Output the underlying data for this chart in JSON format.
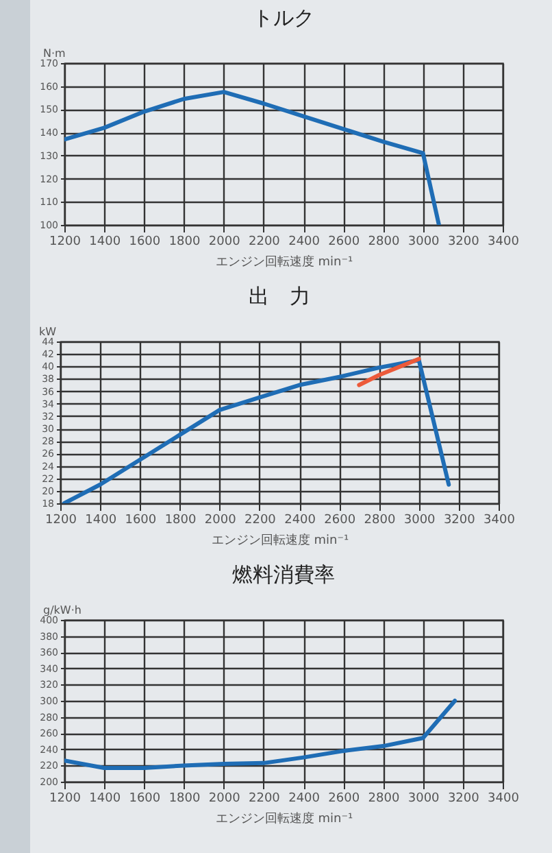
{
  "chart_data": [
    {
      "type": "line",
      "title": "トルク",
      "xlabel": "エンジン回転速度 min⁻¹",
      "ylabel": "N·m",
      "xlim": [
        1200,
        3400
      ],
      "xticks": [
        1200,
        1400,
        1600,
        1800,
        2000,
        2200,
        2400,
        2600,
        2800,
        3000,
        3200,
        3400
      ],
      "ylim": [
        100,
        170
      ],
      "yticks": [
        100,
        110,
        120,
        130,
        140,
        150,
        160,
        170
      ],
      "grid": true,
      "series": [
        {
          "color": "#1f6db5",
          "x": [
            1200,
            1400,
            1600,
            1800,
            2000,
            2200,
            2400,
            2600,
            2800,
            3000,
            3080
          ],
          "values": [
            137,
            142,
            149,
            154.5,
            157.5,
            152.5,
            147,
            141.5,
            136,
            131,
            100
          ]
        }
      ]
    },
    {
      "type": "line",
      "title": "出　力",
      "xlabel": "エンジン回転速度 min⁻¹",
      "ylabel": "kW",
      "xlim": [
        1200,
        3400
      ],
      "xticks": [
        1200,
        1400,
        1600,
        1800,
        2000,
        2200,
        2400,
        2600,
        2800,
        3000,
        3200,
        3400
      ],
      "ylim": [
        18,
        44
      ],
      "yticks": [
        18,
        20,
        22,
        24,
        26,
        28,
        30,
        32,
        34,
        36,
        38,
        40,
        42,
        44
      ],
      "grid": true,
      "series": [
        {
          "color": "#1f6db5",
          "x": [
            1220,
            1400,
            1600,
            1800,
            2000,
            2200,
            2400,
            2600,
            2800,
            3000,
            3150
          ],
          "values": [
            18,
            21,
            25,
            29,
            33,
            35,
            37,
            38.3,
            39.8,
            41,
            21
          ]
        },
        {
          "color": "#ec5a3a",
          "x": [
            2700,
            2800,
            3000
          ],
          "values": [
            37,
            38.6,
            41.2
          ]
        }
      ]
    },
    {
      "type": "line",
      "title": "燃料消費率",
      "xlabel": "エンジン回転速度 min⁻¹",
      "ylabel": "g/kW·h",
      "xlim": [
        1200,
        3400
      ],
      "xticks": [
        1200,
        1400,
        1600,
        1800,
        2000,
        2200,
        2400,
        2600,
        2800,
        3000,
        3200,
        3400
      ],
      "ylim": [
        200,
        400
      ],
      "yticks": [
        200,
        220,
        240,
        260,
        280,
        300,
        320,
        340,
        360,
        380,
        400
      ],
      "grid": true,
      "series": [
        {
          "color": "#1f6db5",
          "x": [
            1200,
            1400,
            1600,
            1800,
            2000,
            2200,
            2400,
            2600,
            2800,
            3000,
            3160
          ],
          "values": [
            226,
            217,
            217,
            220,
            222,
            223,
            230,
            238,
            244,
            254,
            300
          ]
        }
      ]
    }
  ]
}
